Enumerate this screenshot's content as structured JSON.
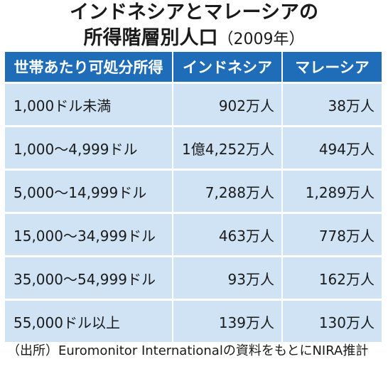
{
  "title_line1": "インドネシアとマレーシアの",
  "title_line2": "所得階層別人口",
  "title_year": "（2009年）",
  "colors": {
    "header_bg": "#1f6db8",
    "cell_bg": "#cfe3f5",
    "text": "#1a1a1a"
  },
  "chart_data": {
    "type": "table",
    "title": "インドネシアとマレーシアの所得階層別人口（2009年）",
    "columns": [
      "世帯あたり可処分所得",
      "インドネシア",
      "マレーシア"
    ],
    "rows": [
      [
        "1,000ドル未満",
        "902万人",
        "38万人"
      ],
      [
        "1,000〜4,999ドル",
        "1億4,252万人",
        "494万人"
      ],
      [
        "5,000〜14,999ドル",
        "7,288万人",
        "1,289万人"
      ],
      [
        "15,000〜34,999ドル",
        "463万人",
        "778万人"
      ],
      [
        "35,000〜54,999ドル",
        "93万人",
        "162万人"
      ],
      [
        "55,000ドル以上",
        "139万人",
        "130万人"
      ]
    ]
  },
  "source": "（出所）Euromonitor Internationalの資料をもとにNIRA推計"
}
